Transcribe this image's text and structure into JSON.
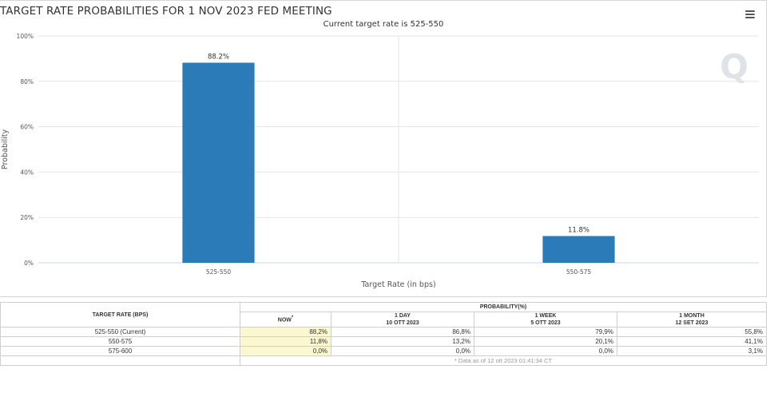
{
  "chart_data": {
    "type": "bar",
    "title": "TARGET RATE PROBABILITIES FOR 1 NOV 2023 FED MEETING",
    "subtitle": "Current target rate is 525-550",
    "xlabel": "Target Rate (in bps)",
    "ylabel": "Probability",
    "categories": [
      "525-550",
      "550-575"
    ],
    "values": [
      88.2,
      11.8
    ],
    "data_labels": [
      "88.2%",
      "11.8%"
    ],
    "ylim": [
      0,
      100
    ],
    "yticks": [
      "0%",
      "20%",
      "40%",
      "60%",
      "80%",
      "100%"
    ],
    "bar_color": "#2b7bb9",
    "grid": true,
    "legend": "none"
  },
  "watermark": "Q",
  "menu_icon": "hamburger-menu-icon",
  "table": {
    "target_header": "TARGET RATE (BPS)",
    "probability_header": "PROBABILITY(%)",
    "columns": [
      {
        "label": "NOW",
        "marker": "*",
        "date": ""
      },
      {
        "label": "1 DAY",
        "date": "10 OTT 2023"
      },
      {
        "label": "1 WEEK",
        "date": "5 OTT 2023"
      },
      {
        "label": "1 MONTH",
        "date": "12 SET 2023"
      }
    ],
    "rows": [
      {
        "rate": "525-550 (Current)",
        "values": [
          "88,2%",
          "86,8%",
          "79,9%",
          "55,8%"
        ]
      },
      {
        "rate": "550-575",
        "values": [
          "11,8%",
          "13,2%",
          "20,1%",
          "41,1%"
        ]
      },
      {
        "rate": "575-600",
        "values": [
          "0,0%",
          "0,0%",
          "0,0%",
          "3,1%"
        ]
      }
    ],
    "footnote": "* Data as of 12 ott 2023 01:41:34 CT",
    "now_highlight_color": "#fbf8d1"
  }
}
